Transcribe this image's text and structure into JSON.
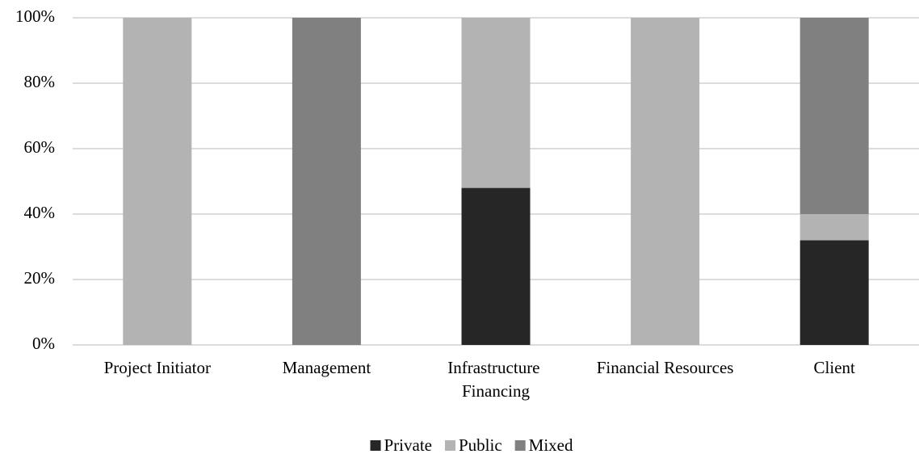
{
  "chart_data": {
    "type": "stacked_bar",
    "categories": [
      "Project Initiator",
      "Management",
      "Infrastructure Financing",
      "Financial Resources",
      "Client"
    ],
    "series": [
      {
        "name": "Private",
        "color": "#262626",
        "values": [
          0,
          0,
          48,
          0,
          32
        ]
      },
      {
        "name": "Public",
        "color": "#b3b3b3",
        "values": [
          100,
          0,
          52,
          100,
          8
        ]
      },
      {
        "name": "Mixed",
        "color": "#808080",
        "values": [
          0,
          100,
          0,
          0,
          60
        ]
      }
    ],
    "ylim": [
      0,
      100
    ],
    "yticks": [
      {
        "value": 0,
        "label": "0%"
      },
      {
        "value": 20,
        "label": "20%"
      },
      {
        "value": 40,
        "label": "40%"
      },
      {
        "value": 60,
        "label": "60%"
      },
      {
        "value": 80,
        "label": "80%"
      },
      {
        "value": 100,
        "label": "100%"
      }
    ],
    "grid": true,
    "legend": "bottom"
  }
}
